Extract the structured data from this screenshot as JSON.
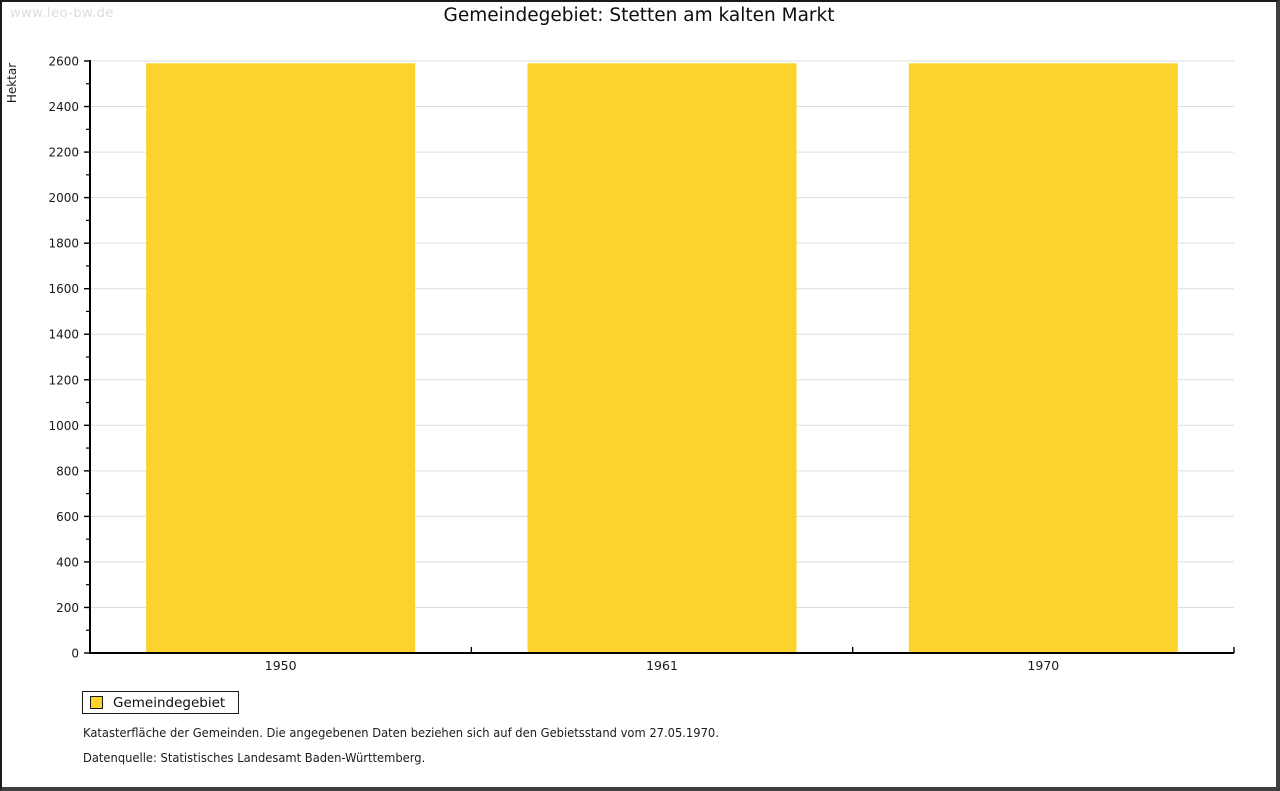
{
  "page": {
    "watermark": "www.leo-bw.de",
    "title": "Gemeindegebiet: Stetten am kalten Markt",
    "background": "#ffffff"
  },
  "legend": {
    "label": "Gemeindegebiet",
    "swatch_color": "#fcd32c",
    "border_color": "#1a1a1a"
  },
  "footer": {
    "line1": "Katasterfläche der Gemeinden. Die angegebenen Daten beziehen sich auf den Gebietsstand vom 27.05.1970.",
    "line2": "Datenquelle: Statistisches Landesamt Baden-Württemberg."
  },
  "chart_data": {
    "type": "bar",
    "title": "Gemeindegebiet: Stetten am kalten Markt",
    "categories": [
      "1950",
      "1961",
      "1970"
    ],
    "series": [
      {
        "name": "Gemeindegebiet",
        "color": "#fcd32c",
        "values": [
          2590,
          2590,
          2590
        ]
      }
    ],
    "xlabel": "",
    "ylabel": "Hektar",
    "ylim": [
      0,
      2600
    ],
    "ytick_major_step": 200,
    "ytick_minor_step": 100,
    "grid": true,
    "gridline_color": "#dddddd",
    "axis_color": "#000000",
    "tick_label_color": "#1a1a1a",
    "legend_position": "bottom-left"
  }
}
